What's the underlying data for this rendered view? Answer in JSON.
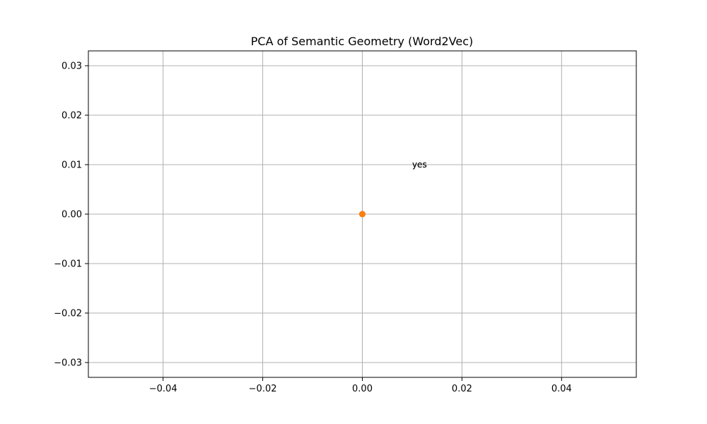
{
  "chart_data": {
    "type": "scatter",
    "title": "PCA of Semantic Geometry (Word2Vec)",
    "xlabel": "",
    "ylabel": "",
    "xlim": [
      -0.055,
      0.055
    ],
    "ylim": [
      -0.033,
      0.033
    ],
    "grid": true,
    "x_ticks": [
      -0.04,
      -0.02,
      0.0,
      0.02,
      0.04
    ],
    "x_tick_labels": [
      "−0.04",
      "−0.02",
      "0.00",
      "0.02",
      "0.04"
    ],
    "y_ticks": [
      -0.03,
      -0.02,
      -0.01,
      0.0,
      0.01,
      0.02,
      0.03
    ],
    "y_tick_labels": [
      "−0.03",
      "−0.02",
      "−0.01",
      "0.00",
      "0.01",
      "0.02",
      "0.03"
    ],
    "series": [
      {
        "color": "#1f77b4",
        "points": [
          {
            "x": 0.0,
            "y": 0.0
          }
        ]
      },
      {
        "color": "#ff7f0e",
        "points": [
          {
            "x": 0.0,
            "y": 0.0
          }
        ]
      }
    ],
    "annotations": [
      {
        "text": "yes",
        "x": 0.01,
        "y": 0.01
      },
      {
        "text": "yes",
        "x": 0.01,
        "y": 0.01
      }
    ],
    "colors": {
      "grid": "#b0b0b0",
      "axes": "#000000"
    }
  }
}
